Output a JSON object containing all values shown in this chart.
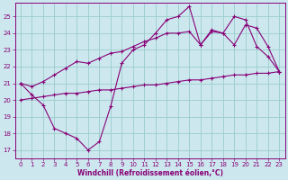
{
  "xlabel": "Windchill (Refroidissement éolien,°C)",
  "bg_color": "#cce8ee",
  "grid_color": "#99cccc",
  "line_color": "#880077",
  "xlim": [
    -0.5,
    23.5
  ],
  "ylim": [
    16.5,
    25.8
  ],
  "yticks": [
    17,
    18,
    19,
    20,
    21,
    22,
    23,
    24,
    25
  ],
  "xticks": [
    0,
    1,
    2,
    3,
    4,
    5,
    6,
    7,
    8,
    9,
    10,
    11,
    12,
    13,
    14,
    15,
    16,
    17,
    18,
    19,
    20,
    21,
    22,
    23
  ],
  "series1_x": [
    0,
    1,
    2,
    3,
    4,
    5,
    6,
    7,
    8,
    9,
    10,
    11,
    12,
    13,
    14,
    15,
    16,
    17,
    18,
    19,
    20,
    21,
    22,
    23
  ],
  "series1_y": [
    21.0,
    20.3,
    19.7,
    18.3,
    18.0,
    17.7,
    17.0,
    17.5,
    19.6,
    22.2,
    23.0,
    23.3,
    24.0,
    24.8,
    25.0,
    25.6,
    23.3,
    24.2,
    24.0,
    25.0,
    24.8,
    23.2,
    22.6,
    21.7
  ],
  "series2_x": [
    0,
    1,
    2,
    3,
    4,
    5,
    6,
    7,
    8,
    9,
    10,
    11,
    12,
    13,
    14,
    15,
    16,
    17,
    18,
    19,
    20,
    21,
    22,
    23
  ],
  "series2_y": [
    21.0,
    20.8,
    21.1,
    21.5,
    21.9,
    22.3,
    22.2,
    22.5,
    22.8,
    22.9,
    23.2,
    23.5,
    23.7,
    24.0,
    24.0,
    24.1,
    23.3,
    24.1,
    24.0,
    23.3,
    24.5,
    24.3,
    23.2,
    21.7
  ],
  "series3_x": [
    0,
    1,
    2,
    3,
    4,
    5,
    6,
    7,
    8,
    9,
    10,
    11,
    12,
    13,
    14,
    15,
    16,
    17,
    18,
    19,
    20,
    21,
    22,
    23
  ],
  "series3_y": [
    20.0,
    20.1,
    20.2,
    20.3,
    20.4,
    20.4,
    20.5,
    20.6,
    20.6,
    20.7,
    20.8,
    20.9,
    20.9,
    21.0,
    21.1,
    21.2,
    21.2,
    21.3,
    21.4,
    21.5,
    21.5,
    21.6,
    21.6,
    21.7
  ]
}
